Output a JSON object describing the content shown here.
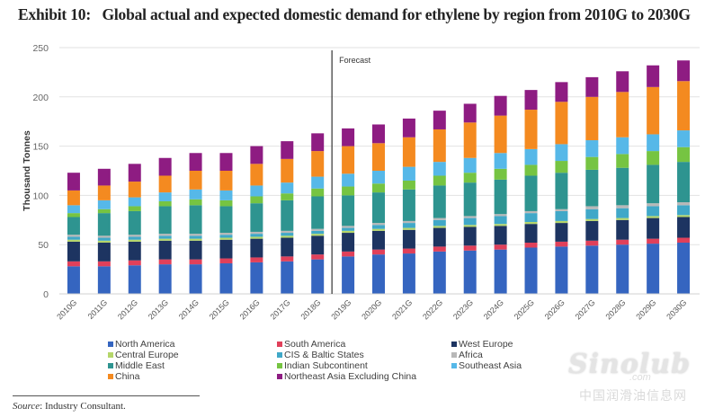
{
  "title": "Exhibit 10:   Global actual and expected domestic demand for ethylene by region from 2010G to 2030G",
  "source_label": "Source",
  "source_text": ": Industry Consultant.",
  "watermark": {
    "logo": "Sinolub",
    "domain": ".com",
    "chinese": "中国润滑油信息网"
  },
  "chart_data": {
    "type": "bar",
    "stacked": true,
    "title": "Global actual and expected domestic demand for ethylene by region from 2010G to 2030G",
    "xlabel": "",
    "ylabel": "Thousand Tonnes",
    "ylim": [
      0,
      250
    ],
    "yticks": [
      0,
      50,
      100,
      150,
      200,
      250
    ],
    "grid": true,
    "legend_position": "bottom",
    "annotation": {
      "text": "Forecast",
      "after_category": "2018G"
    },
    "categories": [
      "2010G",
      "2011G",
      "2012G",
      "2013G",
      "2014G",
      "2015G",
      "2016G",
      "2017G",
      "2018G",
      "2019G",
      "2020G",
      "2021G",
      "2022G",
      "2023G",
      "2024G",
      "2025G",
      "2026G",
      "2027G",
      "2028G",
      "2029G",
      "2030G"
    ],
    "series": [
      {
        "name": "North America",
        "color": "#3565c0",
        "values": [
          28,
          28,
          29,
          30,
          30,
          31,
          32,
          33,
          35,
          38,
          40,
          41,
          43,
          44,
          45,
          47,
          48,
          49,
          50,
          51,
          52
        ]
      },
      {
        "name": "South America",
        "color": "#e0405a",
        "values": [
          5,
          5,
          5,
          5,
          5,
          5,
          5,
          5,
          5,
          5,
          5,
          5,
          5,
          5,
          5,
          5,
          5,
          5,
          5,
          5,
          5
        ]
      },
      {
        "name": "West Europe",
        "color": "#1d3461",
        "values": [
          20,
          19,
          19,
          19,
          19,
          19,
          19,
          19,
          19,
          19,
          19,
          19,
          19,
          19,
          19,
          19,
          19,
          20,
          20,
          21,
          21
        ]
      },
      {
        "name": "Central Europe",
        "color": "#b5d66a",
        "values": [
          2,
          2,
          2,
          2,
          2,
          2,
          2,
          2,
          2,
          2,
          2,
          2,
          2,
          2,
          2,
          2,
          2,
          2,
          2,
          2,
          2
        ]
      },
      {
        "name": "CIS & Baltic States",
        "color": "#40a8c8",
        "values": [
          3,
          3,
          3,
          3,
          3,
          3,
          3,
          3,
          3,
          3,
          4,
          5,
          6,
          7,
          8,
          9,
          10,
          10,
          10,
          10,
          10
        ]
      },
      {
        "name": "Africa",
        "color": "#b8b8b8",
        "values": [
          2,
          2,
          2,
          2,
          2,
          2,
          2,
          2,
          2,
          2,
          2,
          2,
          2,
          2,
          2,
          2,
          2,
          3,
          3,
          3,
          3
        ]
      },
      {
        "name": "Middle East",
        "color": "#2e9490",
        "values": [
          18,
          23,
          24,
          28,
          29,
          27,
          29,
          31,
          33,
          31,
          31,
          32,
          33,
          34,
          35,
          36,
          37,
          37,
          38,
          39,
          41
        ]
      },
      {
        "name": "Indian Subcontinent",
        "color": "#76c442",
        "values": [
          4,
          4,
          5,
          5,
          6,
          6,
          7,
          7,
          8,
          9,
          9,
          9,
          10,
          10,
          11,
          11,
          12,
          13,
          14,
          14,
          15
        ]
      },
      {
        "name": "Southeast Asia",
        "color": "#56b8e8",
        "values": [
          8,
          9,
          9,
          9,
          10,
          10,
          11,
          11,
          12,
          13,
          13,
          14,
          14,
          15,
          16,
          16,
          17,
          17,
          17,
          17,
          17
        ]
      },
      {
        "name": "China",
        "color": "#f48a20",
        "values": [
          15,
          15,
          16,
          17,
          19,
          20,
          22,
          24,
          26,
          28,
          28,
          30,
          33,
          36,
          38,
          40,
          43,
          44,
          46,
          48,
          50
        ]
      },
      {
        "name": "Northeast Asia Excluding China",
        "color": "#8e1c82",
        "values": [
          18,
          17,
          18,
          18,
          18,
          18,
          18,
          18,
          18,
          18,
          19,
          19,
          19,
          19,
          20,
          20,
          20,
          20,
          21,
          22,
          21
        ]
      }
    ]
  }
}
